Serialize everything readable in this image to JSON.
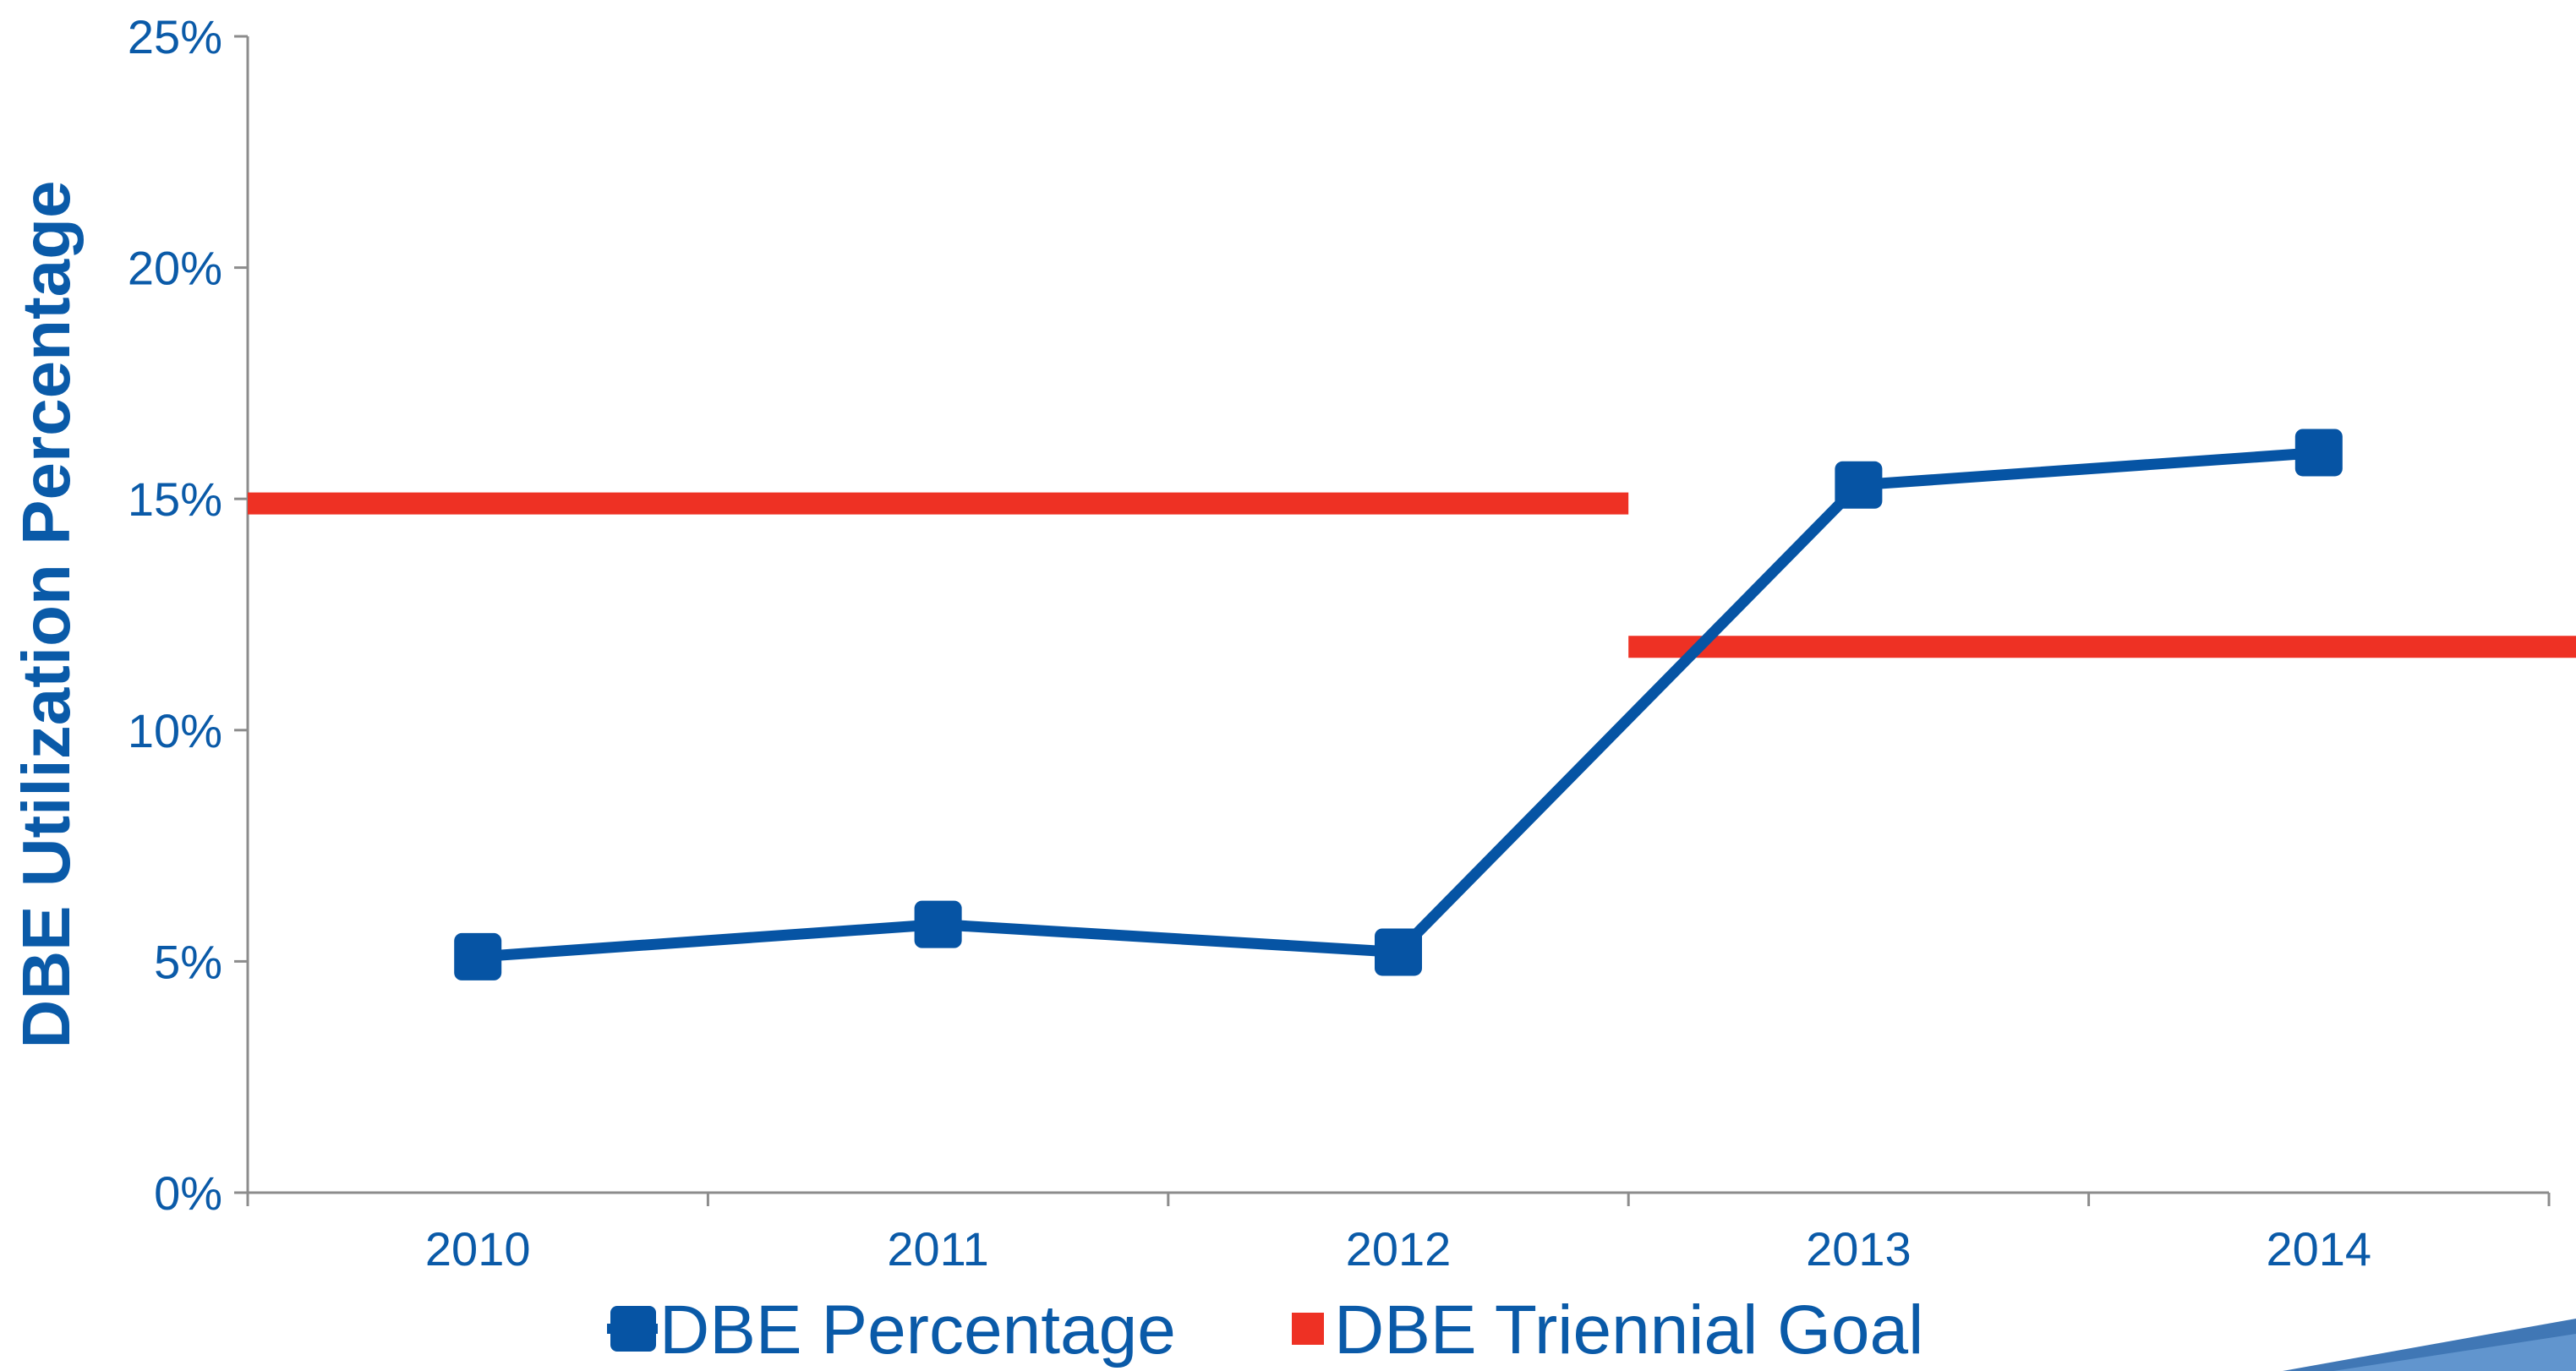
{
  "chart_data": {
    "type": "line",
    "title": "",
    "xlabel": "",
    "ylabel": "DBE Utilization Percentage",
    "categories": [
      "2010",
      "2011",
      "2012",
      "2013",
      "2014"
    ],
    "y_ticks": [
      "0%",
      "5%",
      "10%",
      "15%",
      "20%",
      "25%"
    ],
    "ylim": [
      0,
      25
    ],
    "grid": false,
    "legend_position": "bottom",
    "series": [
      {
        "name": "DBE Percentage",
        "color": "#0654a4",
        "values": [
          5.1,
          5.8,
          5.2,
          15.3,
          16.0
        ]
      }
    ],
    "goals": {
      "name": "DBE Triennial Goal",
      "color": "#ee3124",
      "segments": [
        {
          "x_start": "2009.5",
          "x_end": "2012.5",
          "value": 14.9
        },
        {
          "x_start": "2012.5",
          "x_end": "2015.0",
          "value": 11.8
        }
      ]
    },
    "text_color": "#0a5aa8",
    "axis_color": "#8c8c8c"
  }
}
